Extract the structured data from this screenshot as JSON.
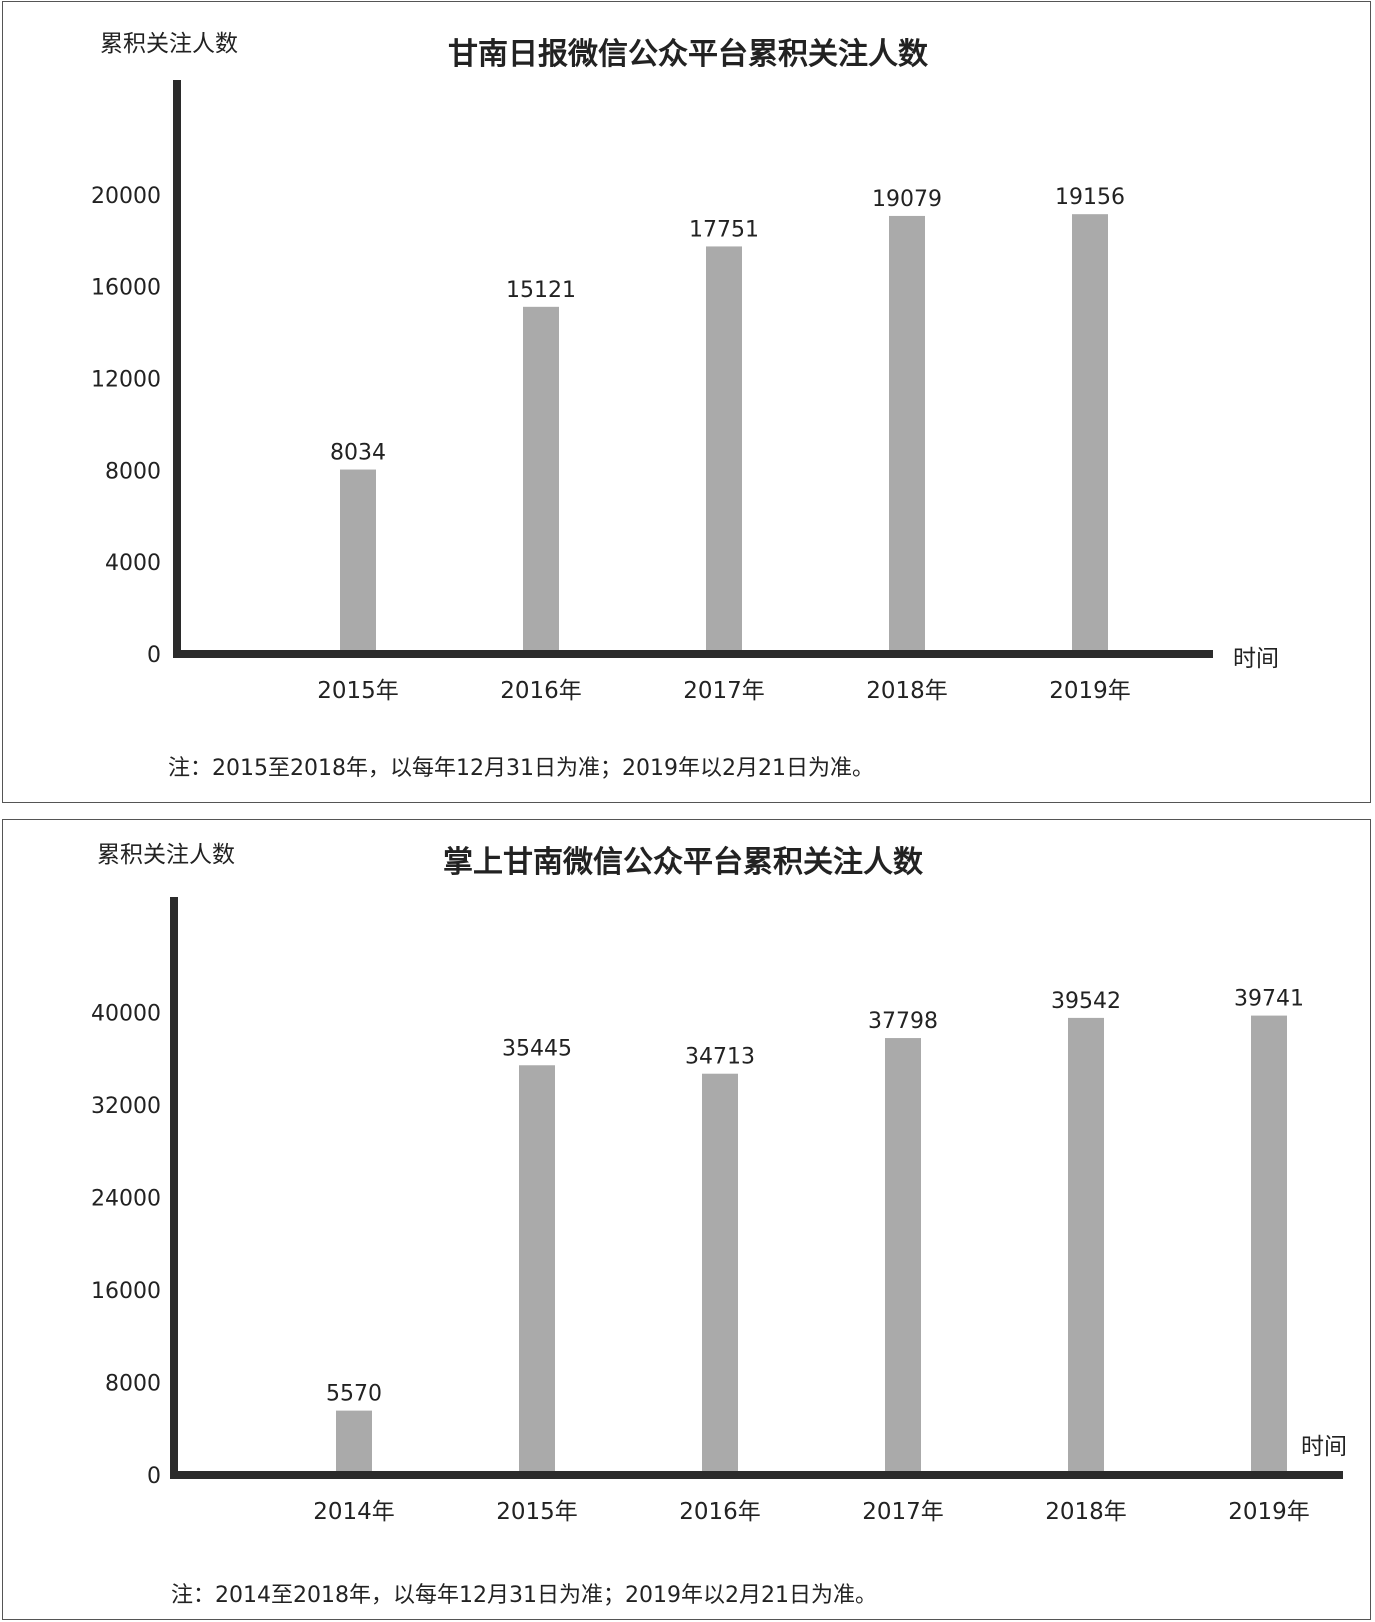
{
  "chart_data": [
    {
      "type": "bar",
      "title": "甘南日报微信公众平台累积关注人数",
      "ylabel": "累积关注人数",
      "xlabel": "时间",
      "categories": [
        "2015年",
        "2016年",
        "2017年",
        "2018年",
        "2019年"
      ],
      "values": [
        8034,
        15121,
        17751,
        19079,
        19156
      ],
      "value_labels": [
        "8034",
        "15121",
        "17751",
        "19079",
        "19156"
      ],
      "yticks": [
        "0",
        "4000",
        "8000",
        "12000",
        "16000",
        "20000"
      ],
      "ylim": [
        0,
        25000
      ],
      "grid": false,
      "note": "注：2015至2018年，以每年12月31日为准；2019年以2月21日为准。",
      "bar_color": "#aaaaaa",
      "axis_color": "#2b2b2b"
    },
    {
      "type": "bar",
      "title": "掌上甘南微信公众平台累积关注人数",
      "ylabel": "累积关注人数",
      "xlabel": "时间",
      "categories": [
        "2014年",
        "2015年",
        "2016年",
        "2017年",
        "2018年",
        "2019年"
      ],
      "values": [
        5570,
        35445,
        34713,
        37798,
        39542,
        39741
      ],
      "value_labels": [
        "5570",
        "35445",
        "34713",
        "37798",
        "39542",
        "39741"
      ],
      "yticks": [
        "0",
        "8000",
        "16000",
        "24000",
        "32000",
        "40000"
      ],
      "ylim": [
        0,
        50000
      ],
      "grid": false,
      "note": "注：2014至2018年，以每年12月31日为准；2019年以2月21日为准。",
      "bar_color": "#aaaaaa",
      "axis_color": "#2b2b2b"
    }
  ]
}
